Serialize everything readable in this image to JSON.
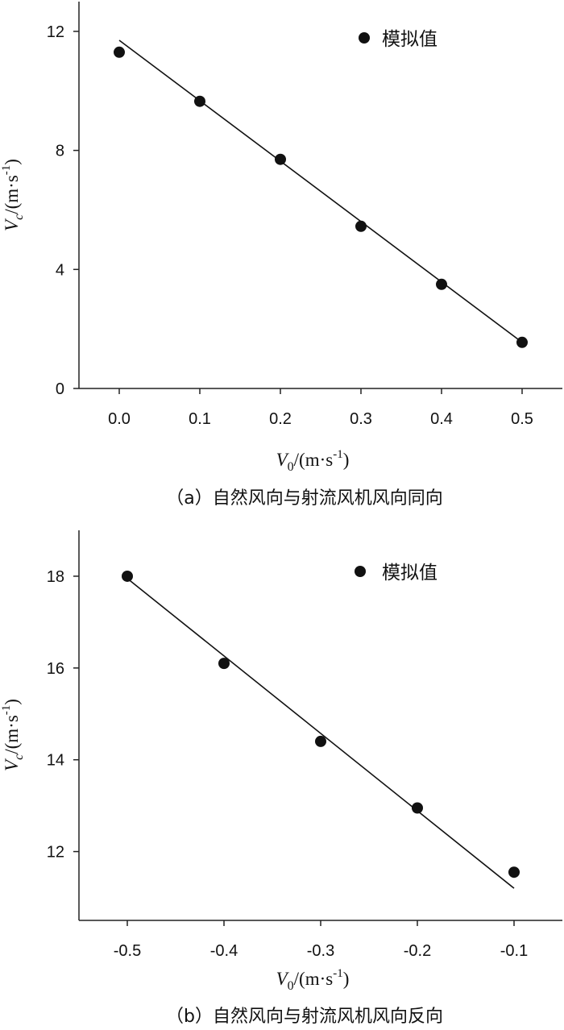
{
  "chart_data": [
    {
      "type": "scatter",
      "caption": "（a）自然风向与射流风机风向同向",
      "xlabel": {
        "var": "V",
        "sub": "0",
        "unit": "/(m·s",
        "sup": "-1",
        "close": ")"
      },
      "ylabel": {
        "var": "V",
        "sub": "c",
        "unit": "/(m·s",
        "sup": "-1",
        "close": ")"
      },
      "xlim": [
        -0.05,
        0.55
      ],
      "ylim": [
        0,
        13.0
      ],
      "xticks": [
        "0.0",
        "0.1",
        "0.2",
        "0.3",
        "0.4",
        "0.5"
      ],
      "xtick_values": [
        0.0,
        0.1,
        0.2,
        0.3,
        0.4,
        0.5
      ],
      "yticks": [
        "0",
        "4",
        "8",
        "12"
      ],
      "ytick_values": [
        0,
        4,
        8,
        12
      ],
      "series": [
        {
          "name": "模拟值",
          "x": [
            0.0,
            0.1,
            0.2,
            0.3,
            0.4,
            0.5
          ],
          "y": [
            11.3,
            9.65,
            7.7,
            5.45,
            3.5,
            1.55
          ]
        }
      ],
      "fit_line": {
        "x": [
          0.0,
          0.5
        ],
        "y": [
          11.7,
          1.55
        ]
      },
      "legend": {
        "position": "top-right"
      },
      "grid": false
    },
    {
      "type": "scatter",
      "caption": "（b）自然风向与射流风机风向反向",
      "xlabel": {
        "var": "V",
        "sub": "0",
        "unit": "/(m·s",
        "sup": "-1",
        "close": ")"
      },
      "ylabel": {
        "var": "V",
        "sub": "c",
        "unit": "/(m·s",
        "sup": "-1",
        "close": ")"
      },
      "xlim": [
        -0.55,
        -0.05
      ],
      "ylim": [
        10.5,
        19.0
      ],
      "xticks": [
        "-0.5",
        "-0.4",
        "-0.3",
        "-0.2",
        "-0.1"
      ],
      "xtick_values": [
        -0.5,
        -0.4,
        -0.3,
        -0.2,
        -0.1
      ],
      "yticks": [
        "12",
        "14",
        "16",
        "18"
      ],
      "ytick_values": [
        12,
        14,
        16,
        18
      ],
      "series": [
        {
          "name": "模拟值",
          "x": [
            -0.5,
            -0.4,
            -0.3,
            -0.2,
            -0.1
          ],
          "y": [
            18.0,
            16.1,
            14.4,
            12.95,
            11.55
          ]
        }
      ],
      "fit_line": {
        "x": [
          -0.5,
          -0.1
        ],
        "y": [
          17.95,
          11.2
        ]
      },
      "legend": {
        "position": "top-right"
      },
      "grid": false
    }
  ]
}
